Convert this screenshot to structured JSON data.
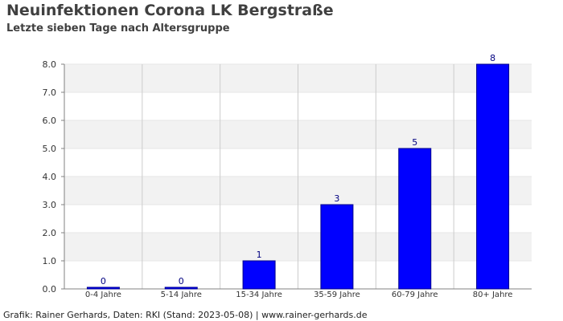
{
  "header": {
    "title": "Neuinfektionen Corona LK Bergstraße",
    "subtitle": "Letzte sieben Tage nach Altersgruppe"
  },
  "footer": {
    "credit": "Grafik: Rainer Gerhards, Daten: RKI (Stand: 2023-05-08) | www.rainer-gerhards.de"
  },
  "colors": {
    "bar": "#0000ff",
    "bar_stroke": "#00008b",
    "value_label": "#000080",
    "band": "#f2f2f2",
    "grid": "#cccccc",
    "axis": "#808080",
    "tick_text": "#333333"
  },
  "chart_data": {
    "type": "bar",
    "categories": [
      "0-4 Jahre",
      "5-14 Jahre",
      "15-34 Jahre",
      "35-59 Jahre",
      "60-79 Jahre",
      "80+ Jahre"
    ],
    "values": [
      0,
      0,
      1,
      3,
      5,
      8
    ],
    "value_labels": [
      "0",
      "0",
      "1",
      "3",
      "5",
      "8"
    ],
    "yticks": [
      "0.0",
      "1.0",
      "2.0",
      "3.0",
      "4.0",
      "5.0",
      "6.0",
      "7.0",
      "8.0"
    ],
    "ylim": [
      0,
      8
    ],
    "grid": true,
    "legend": "none"
  }
}
